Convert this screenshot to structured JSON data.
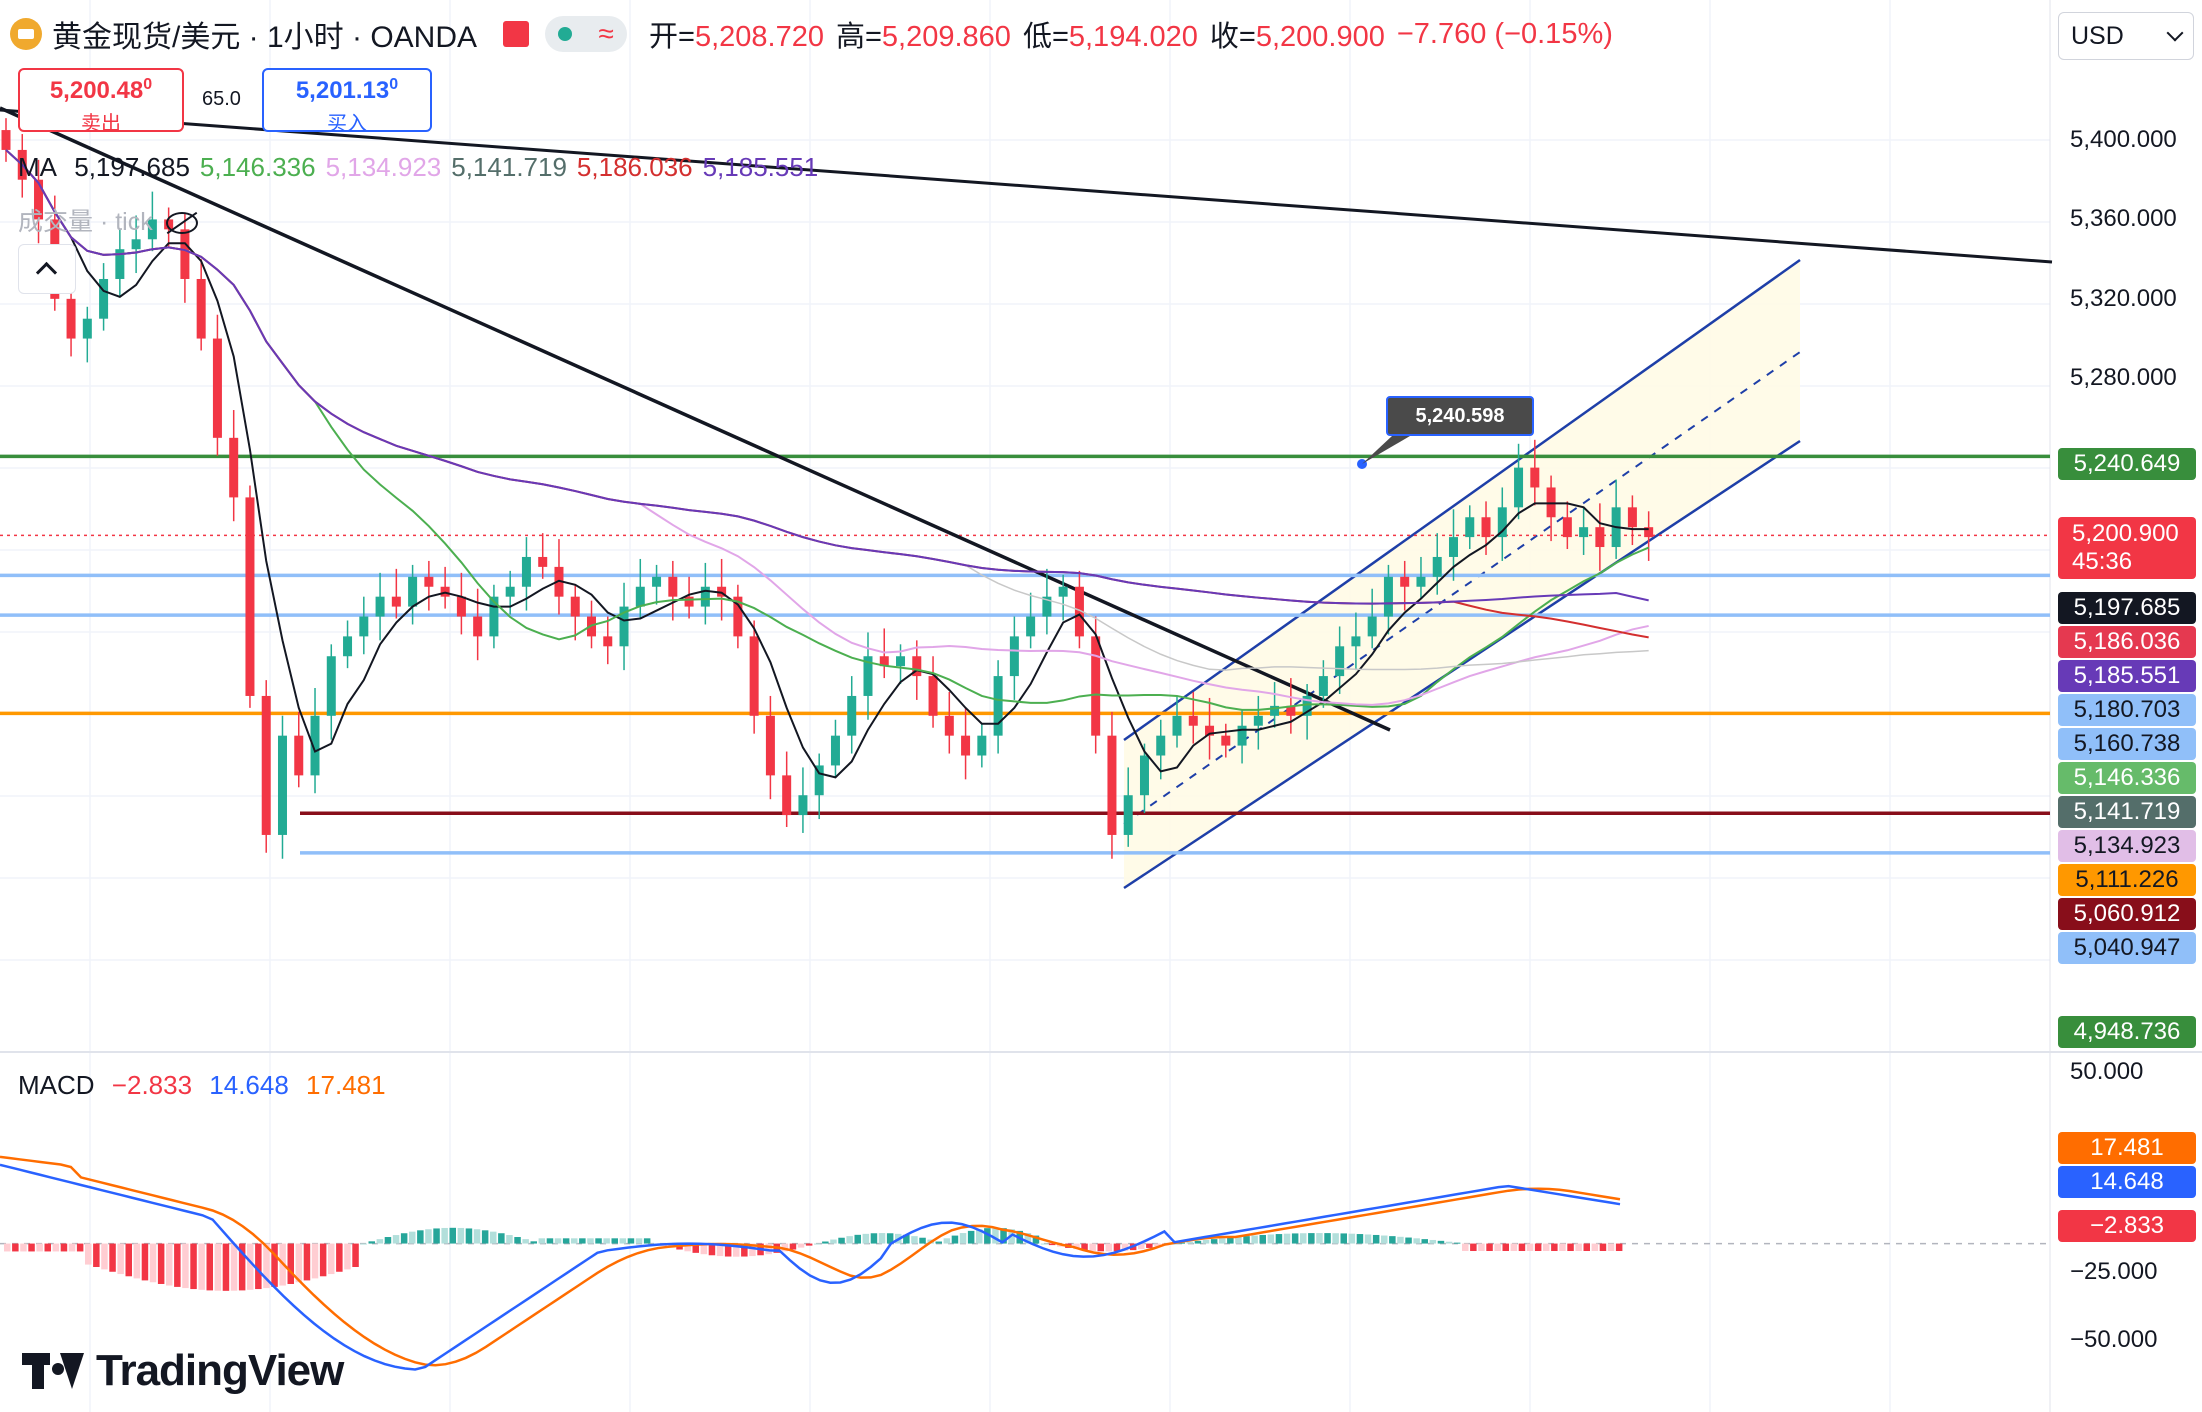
{
  "header": {
    "symbol": "黄金现货/美元 · 1小时 · OANDA",
    "ohlc": [
      {
        "label": "开=",
        "value": "5,208.720"
      },
      {
        "label": "高=",
        "value": "5,209.860"
      },
      {
        "label": "低=",
        "value": "5,194.020"
      },
      {
        "label": "收=",
        "value": "5,200.900"
      }
    ],
    "change": "−7.760 (−0.15%)",
    "currency": "USD"
  },
  "trade": {
    "sell_price": "5,200.48",
    "sell_price_small": "0",
    "sell_label": "卖出",
    "spread": "65.0",
    "buy_price": "5,201.13",
    "buy_price_small": "0",
    "buy_label": "买入"
  },
  "legend": {
    "ma_label": "MA",
    "ma_values": [
      {
        "value": "5,197.685",
        "color": "#131722"
      },
      {
        "value": "5,146.336",
        "color": "#4caf50"
      },
      {
        "value": "5,134.923",
        "color": "#e1a6e8"
      },
      {
        "value": "5,141.719",
        "color": "#546e6a"
      },
      {
        "value": "5,186.036",
        "color": "#d32f2f"
      },
      {
        "value": "5,185.551",
        "color": "#673ab7"
      }
    ],
    "volume_label": "成交量 · tick"
  },
  "macd_legend": {
    "label": "MACD",
    "hist": "−2.833",
    "macd": "14.648",
    "signal": "17.481",
    "colors": {
      "hist": "#f23645",
      "macd": "#2962ff",
      "signal": "#ff6d00"
    }
  },
  "callout": "5,240.598",
  "price_axis": [
    "5,400.000",
    "5,360.000",
    "5,320.000",
    "5,280.000"
  ],
  "price_labels": [
    {
      "text": "5,240.649",
      "color": "#388e3c",
      "price": 5240.649
    },
    {
      "text": "5,197.685",
      "color": "#131722",
      "price": 5197.685
    },
    {
      "text": "5,186.036",
      "color": "#e53950",
      "price": 5186.036
    },
    {
      "text": "5,185.551",
      "color": "#673ab7",
      "price": 5185.551
    },
    {
      "text": "5,180.703",
      "color": "#90bff9",
      "price": 5180.703,
      "dark_text": true
    },
    {
      "text": "5,160.738",
      "color": "#90bff9",
      "price": 5160.738,
      "dark_text": true
    },
    {
      "text": "5,146.336",
      "color": "#66bb6a",
      "price": 5146.336
    },
    {
      "text": "5,141.719",
      "color": "#546e6a",
      "price": 5141.719
    },
    {
      "text": "5,134.923",
      "color": "#e1bee7",
      "price": 5134.923,
      "dark_text": true
    },
    {
      "text": "5,111.226",
      "color": "#ff9800",
      "price": 5111.226,
      "dark_text": true
    },
    {
      "text": "5,060.912",
      "color": "#880e1a",
      "price": 5060.912
    },
    {
      "text": "5,040.947",
      "color": "#90bff9",
      "price": 5040.947,
      "dark_text": true
    },
    {
      "text": "4,948.736",
      "color": "#388e3c",
      "price": 4948.736
    }
  ],
  "last_price": {
    "text": "5,200.900",
    "countdown": "45:36",
    "color": "#f23645"
  },
  "macd_axis": [
    "50.000",
    "−25.000",
    "−50.000"
  ],
  "macd_labels": [
    {
      "text": "17.481",
      "color": "#ff6d00"
    },
    {
      "text": "14.648",
      "color": "#2962ff"
    },
    {
      "text": "−2.833",
      "color": "#f23645"
    }
  ],
  "brand": "TradingView",
  "chart_data": {
    "type": "candlestick",
    "symbol": "黄金现货/美元",
    "interval": "1小时",
    "price_range": [
      4930,
      5420
    ],
    "horizontal_levels": [
      {
        "price": 5240.649,
        "color": "#388e3c"
      },
      {
        "price": 5200.9,
        "color": "#f23645",
        "style": "dotted"
      },
      {
        "price": 5180.703,
        "color": "#90bff9"
      },
      {
        "price": 5160.738,
        "color": "#90bff9"
      },
      {
        "price": 5111.226,
        "color": "#ff9800"
      },
      {
        "price": 5060.912,
        "color": "#880e1a"
      },
      {
        "price": 5040.947,
        "color": "#90bff9"
      }
    ],
    "candles_close": [
      5395,
      5380,
      5360,
      5320,
      5300,
      5310,
      5330,
      5345,
      5350,
      5360,
      5355,
      5330,
      5300,
      5250,
      5220,
      5120,
      5050,
      5100,
      5080,
      5110,
      5140,
      5150,
      5160,
      5170,
      5165,
      5180,
      5175,
      5170,
      5160,
      5150,
      5170,
      5175,
      5190,
      5185,
      5170,
      5160,
      5150,
      5145,
      5165,
      5175,
      5180,
      5170,
      5165,
      5175,
      5170,
      5150,
      5110,
      5080,
      5060,
      5070,
      5085,
      5100,
      5120,
      5140,
      5135,
      5140,
      5130,
      5110,
      5100,
      5090,
      5100,
      5130,
      5150,
      5160,
      5170,
      5175,
      5150,
      5100,
      5050,
      5070,
      5090,
      5100,
      5110,
      5105,
      5100,
      5095,
      5105,
      5110,
      5115,
      5110,
      5120,
      5130,
      5145,
      5150,
      5160,
      5180,
      5175,
      5180,
      5190,
      5200,
      5210,
      5200,
      5215,
      5235,
      5225,
      5210,
      5200,
      5205,
      5195,
      5215,
      5205,
      5200
    ],
    "macd_range": [
      -55,
      60
    ],
    "macd_hist_last": -2.833,
    "macd_last": 14.648,
    "signal_last": 17.481
  }
}
